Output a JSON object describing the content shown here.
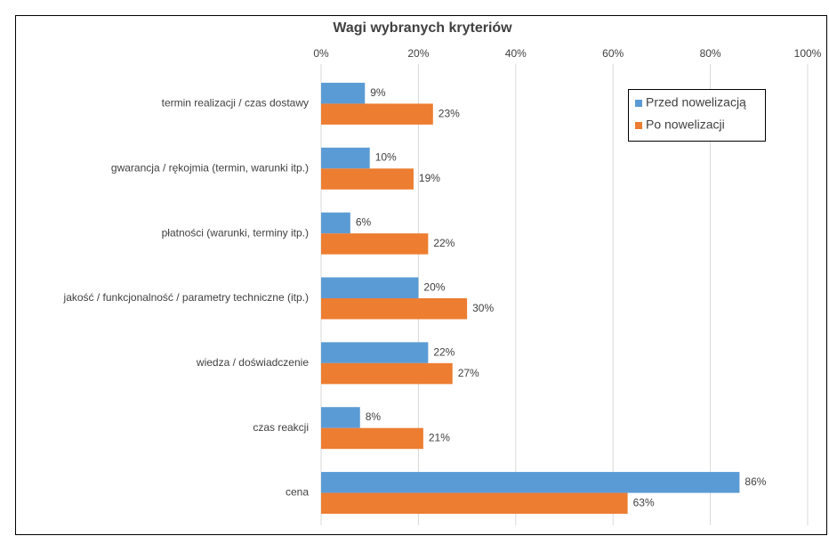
{
  "chart_data": {
    "type": "bar",
    "orientation": "horizontal",
    "title": "Wagi wybranych kryteriów",
    "categories": [
      "termin realizacji / czas dostawy",
      "gwarancja / rękojmia (termin, warunki itp.)",
      "płatności (warunki, terminy itp.)",
      "jakość / funkcjonalność / parametry techniczne (itp.)",
      "wiedza / doświadczenie",
      "czas reakcji",
      "cena"
    ],
    "series": [
      {
        "name": "Przed nowelizacją",
        "color": "#5b9bd5",
        "values": [
          9,
          10,
          6,
          20,
          22,
          8,
          86
        ],
        "value_labels": [
          "9%",
          "10%",
          "6%",
          "20%",
          "22%",
          "8%",
          "86%"
        ]
      },
      {
        "name": "Po nowelizacji",
        "color": "#ed7d31",
        "values": [
          23,
          19,
          22,
          30,
          27,
          21,
          63
        ],
        "value_labels": [
          "23%",
          "19%",
          "22%",
          "30%",
          "27%",
          "21%",
          "63%"
        ]
      }
    ],
    "xlim": [
      0,
      100
    ],
    "xticks": [
      {
        "value": 0,
        "label": "0%"
      },
      {
        "value": 20,
        "label": "20%"
      },
      {
        "value": 40,
        "label": "40%"
      },
      {
        "value": 60,
        "label": "60%"
      },
      {
        "value": 80,
        "label": "80%"
      },
      {
        "value": 100,
        "label": "100%"
      }
    ],
    "grid": true,
    "legend": "upper right"
  }
}
